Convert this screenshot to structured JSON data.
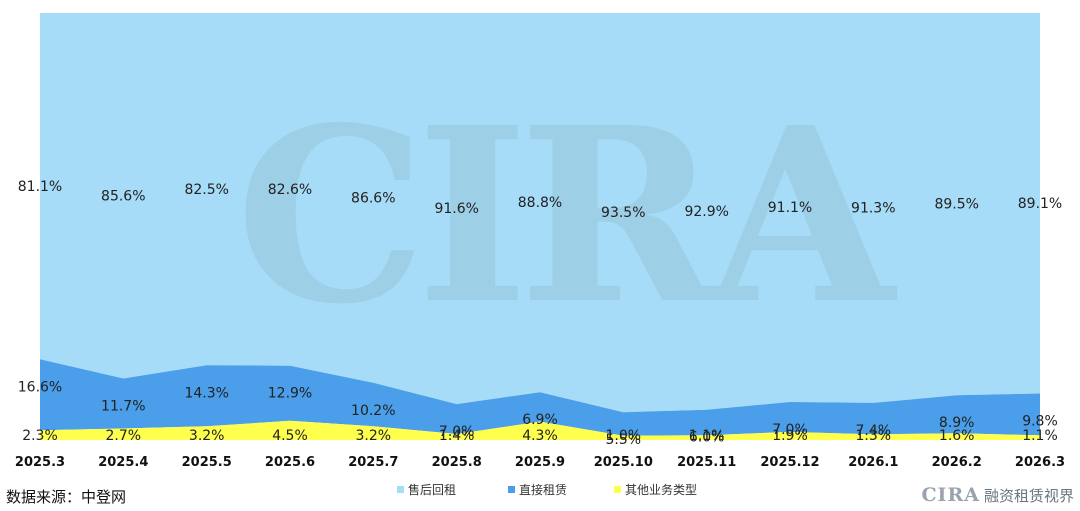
{
  "chart_data": {
    "type": "area",
    "categories": [
      "2025.3",
      "2025.4",
      "2025.5",
      "2025.6",
      "2025.7",
      "2025.8",
      "2025.9",
      "2025.10",
      "2025.11",
      "2025.12",
      "2026.1",
      "2026.2",
      "2026.3"
    ],
    "series": [
      {
        "name": "其他业务类型",
        "values": [
          2.3,
          2.7,
          3.2,
          4.5,
          3.2,
          1.4,
          4.3,
          1.0,
          1.1,
          1.9,
          1.3,
          1.6,
          1.1
        ],
        "labels": [
          "2.3%",
          "2.7%",
          "3.2%",
          "4.5%",
          "3.2%",
          "1.4%",
          "4.3%",
          "1.0%",
          "1.1%",
          "1.9%",
          "1.3%",
          "1.6%",
          "1.1%"
        ],
        "color": "#ffff4d"
      },
      {
        "name": "直接租赁",
        "values": [
          16.6,
          11.7,
          14.3,
          12.9,
          10.2,
          7.0,
          6.9,
          5.5,
          6.0,
          7.0,
          7.4,
          8.9,
          9.8
        ],
        "labels": [
          "16.6%",
          "11.7%",
          "14.3%",
          "12.9%",
          "10.2%",
          "7.0%",
          "6.9%",
          "5.5%",
          "6.0%",
          "7.0%",
          "7.4%",
          "8.9%",
          "9.8%"
        ],
        "color": "#4a9eea"
      },
      {
        "name": "售后回租",
        "values": [
          81.1,
          85.6,
          82.5,
          82.6,
          86.6,
          91.6,
          88.8,
          93.5,
          92.9,
          91.1,
          91.3,
          89.5,
          89.1
        ],
        "labels": [
          "81.1%",
          "85.6%",
          "82.5%",
          "82.6%",
          "86.6%",
          "91.6%",
          "88.8%",
          "93.5%",
          "92.9%",
          "91.1%",
          "91.3%",
          "89.5%",
          "89.1%"
        ],
        "color": "#a6dcf7"
      }
    ],
    "stacked": true,
    "ylim": [
      0,
      100
    ],
    "legend_position": "bottom-center",
    "watermark_text": "CIRA"
  },
  "footer": {
    "source": "数据来源：中登网",
    "brand_logo": "CIRA",
    "brand_name": "融资租赁视界"
  }
}
